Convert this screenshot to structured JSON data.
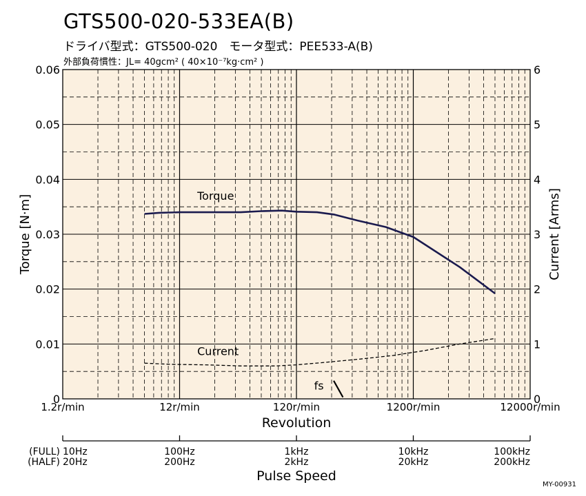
{
  "header": {
    "title": "GTS500-020-533EA(B)",
    "subtitle": "ドライバ型式：GTS500-020　モータ型式：PEE533-A(B)",
    "load_note": "外部負荷慣性：JL= 40gcm² ( 40×10⁻⁷kg·cm² )"
  },
  "chart_data": {
    "type": "line",
    "title": "GTS500-020-533EA(B)",
    "xlabel": "Revolution",
    "ylabel": "Torque [N·m]",
    "y2label": "Current [Arms]",
    "x_scale": "log",
    "xlim": [
      1.2,
      12000
    ],
    "x_tick_values": [
      1.2,
      12,
      120,
      1200,
      12000
    ],
    "x_tick_labels": [
      "1.2r/min",
      "12r/min",
      "120r/min",
      "1200r/min",
      "12000r/min"
    ],
    "ylim": [
      0,
      0.06
    ],
    "y_ticks": [
      0,
      0.01,
      0.02,
      0.03,
      0.04,
      0.05,
      0.06
    ],
    "y_tick_labels": [
      "0",
      "0.01",
      "0.02",
      "0.03",
      "0.04",
      "0.05",
      "0.06"
    ],
    "y2lim": [
      0,
      6
    ],
    "y2_ticks": [
      0,
      1,
      2,
      3,
      4,
      5,
      6
    ],
    "y2_tick_labels": [
      "0",
      "1",
      "2",
      "3",
      "4",
      "5",
      "6"
    ],
    "grid": true,
    "series": [
      {
        "name": "Torque",
        "axis": "left",
        "style": "solid",
        "color": "#1a1a4e",
        "x": [
          6,
          8,
          12,
          20,
          40,
          60,
          90,
          120,
          180,
          250,
          400,
          700,
          1200,
          3000,
          6000
        ],
        "y": [
          0.0337,
          0.0339,
          0.034,
          0.034,
          0.034,
          0.0342,
          0.0343,
          0.0341,
          0.034,
          0.0336,
          0.0325,
          0.0313,
          0.0295,
          0.024,
          0.0192
        ]
      },
      {
        "name": "Current",
        "axis": "right",
        "style": "dashed",
        "color": "#000000",
        "x": [
          6,
          10,
          20,
          40,
          80,
          120,
          200,
          400,
          800,
          1500,
          3000,
          6000
        ],
        "y": [
          0.65,
          0.63,
          0.62,
          0.6,
          0.6,
          0.62,
          0.66,
          0.72,
          0.79,
          0.88,
          1.0,
          1.1
        ]
      }
    ],
    "annotations": [
      {
        "text": "Torque",
        "x": 17,
        "y": 0.0363
      },
      {
        "text": "Current",
        "x": 17,
        "y": 0.008
      },
      {
        "text": "fs",
        "x": 170,
        "y": 0.0017
      }
    ],
    "fs_marker": {
      "x": [
        250,
        300
      ],
      "y": [
        0.0033,
        0.0003
      ]
    },
    "pulse_scale": {
      "label": "Pulse Speed",
      "full_label": "(FULL)",
      "half_label": "(HALF)",
      "full": [
        "10Hz",
        "100Hz",
        "1kHz",
        "10kHz",
        "100kHz"
      ],
      "half": [
        "20Hz",
        "200Hz",
        "2kHz",
        "20kHz",
        "200kHz"
      ]
    },
    "code": "MY-00931",
    "colors": {
      "background": "#fbf0e0",
      "torque": "#1a1a4e",
      "grid": "#000000"
    }
  }
}
